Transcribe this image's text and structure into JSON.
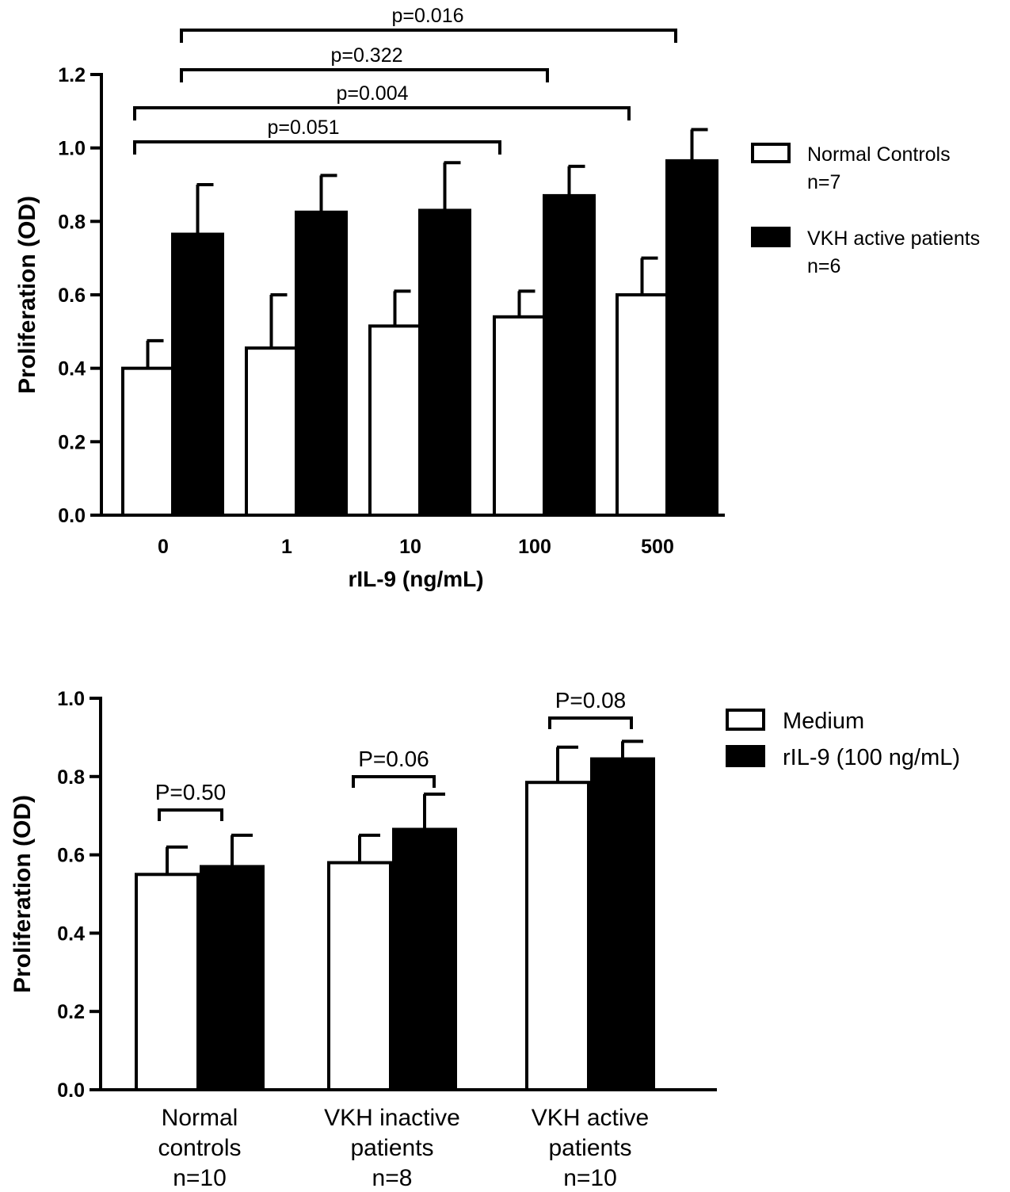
{
  "chart_data": [
    {
      "type": "bar",
      "title": "",
      "xlabel": "rIL-9 (ng/mL)",
      "ylabel": "Proliferation (OD)",
      "ylim": [
        0,
        1.2
      ],
      "yticks": [
        "0.0",
        "0.2",
        "0.4",
        "0.6",
        "0.8",
        "1.0",
        "1.2"
      ],
      "categories": [
        "0",
        "1",
        "10",
        "100",
        "500"
      ],
      "series": [
        {
          "name": "Normal Controls",
          "sublabel": "n=7",
          "fill": "#ffffff",
          "values": [
            0.4,
            0.455,
            0.515,
            0.54,
            0.6
          ],
          "errors": [
            0.075,
            0.145,
            0.095,
            0.07,
            0.1
          ]
        },
        {
          "name": "VKH active patients",
          "sublabel": "n=6",
          "fill": "#000000",
          "values": [
            0.765,
            0.825,
            0.83,
            0.87,
            0.965
          ],
          "errors": [
            0.135,
            0.1,
            0.13,
            0.08,
            0.085
          ]
        }
      ],
      "annotations": [
        {
          "text": "p=0.016",
          "from": "VKH active patients @ 0",
          "to": "VKH active patients @ 500"
        },
        {
          "text": "p=0.322",
          "from": "VKH active patients @ 0",
          "to": "VKH active patients @ 100"
        },
        {
          "text": "p=0.004",
          "from": "Normal Controls @ 0",
          "to": "Normal Controls @ 500"
        },
        {
          "text": "p=0.051",
          "from": "Normal Controls @ 0",
          "to": "Normal Controls @ 100"
        }
      ],
      "legend_position": "right"
    },
    {
      "type": "bar",
      "title": "",
      "xlabel": "",
      "ylabel": "Proliferation (OD)",
      "ylim": [
        0,
        1.0
      ],
      "yticks": [
        "0.0",
        "0.2",
        "0.4",
        "0.6",
        "0.8",
        "1.0"
      ],
      "categories": [
        {
          "lines": [
            "Normal",
            "controls",
            "n=10"
          ]
        },
        {
          "lines": [
            "VKH inactive",
            "patients",
            "n=8"
          ]
        },
        {
          "lines": [
            "VKH active",
            "patients",
            "n=10"
          ]
        }
      ],
      "series": [
        {
          "name": "Medium",
          "fill": "#ffffff",
          "values": [
            0.55,
            0.58,
            0.785
          ],
          "errors": [
            0.07,
            0.07,
            0.09
          ]
        },
        {
          "name": "rIL-9 (100 ng/mL)",
          "fill": "#000000",
          "values": [
            0.57,
            0.665,
            0.845
          ],
          "errors": [
            0.08,
            0.09,
            0.045
          ]
        }
      ],
      "annotations": [
        {
          "text": "P=0.50",
          "category": "Normal controls"
        },
        {
          "text": "P=0.06",
          "category": "VKH inactive patients"
        },
        {
          "text": "P=0.08",
          "category": "VKH active patients"
        }
      ],
      "legend_position": "right"
    }
  ]
}
